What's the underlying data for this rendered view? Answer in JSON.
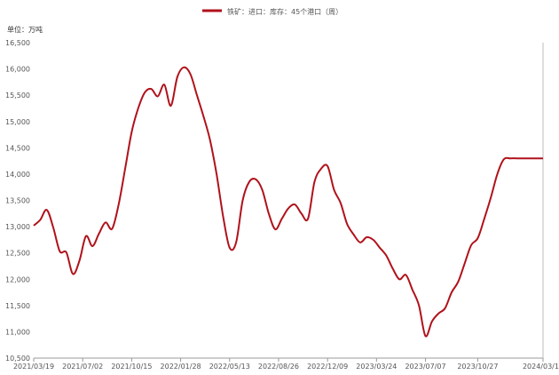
{
  "chart_data": {
    "type": "line",
    "legend": {
      "label": "铁矿：进口：库存：45个港口（周）",
      "color": "#b0121b",
      "placement": "top-center"
    },
    "unit_label": "单位：万吨",
    "ylim": [
      10500,
      16500
    ],
    "y_ticks": [
      "10,500",
      "11,000",
      "11,500",
      "12,000",
      "12,500",
      "13,000",
      "13,500",
      "14,000",
      "14,500",
      "15,000",
      "15,500",
      "16,000",
      "16,500"
    ],
    "y_tick_values": [
      10500,
      11000,
      11500,
      12000,
      12500,
      13000,
      13500,
      14000,
      14500,
      15000,
      15500,
      16000,
      16500
    ],
    "x_ticks": [
      "2021/03/19",
      "2021/07/02",
      "2021/10/15",
      "2022/01/28",
      "2022/05/13",
      "2022/08/26",
      "2022/12/09",
      "2023/03/24",
      "2023/07/07",
      "2023/10/27",
      "2024/03/15"
    ],
    "grid": false,
    "series": [
      {
        "name": "铁矿：进口：库存：45个港口（周）",
        "color": "#b0121b",
        "x": [
          "2021/03/19",
          "2021/04/02",
          "2021/04/16",
          "2021/04/30",
          "2021/05/14",
          "2021/05/28",
          "2021/06/11",
          "2021/06/25",
          "2021/07/09",
          "2021/07/23",
          "2021/08/06",
          "2021/08/20",
          "2021/09/03",
          "2021/09/17",
          "2021/10/01",
          "2021/10/15",
          "2021/10/29",
          "2021/11/12",
          "2021/11/26",
          "2021/12/10",
          "2021/12/24",
          "2022/01/07",
          "2022/01/21",
          "2022/02/04",
          "2022/02/18",
          "2022/03/04",
          "2022/03/18",
          "2022/04/01",
          "2022/04/15",
          "2022/04/29",
          "2022/05/13",
          "2022/05/27",
          "2022/06/10",
          "2022/06/24",
          "2022/07/08",
          "2022/07/22",
          "2022/08/05",
          "2022/08/19",
          "2022/09/02",
          "2022/09/16",
          "2022/09/30",
          "2022/10/14",
          "2022/10/28",
          "2022/11/11",
          "2022/11/25",
          "2022/12/09",
          "2022/12/23",
          "2023/01/06",
          "2023/01/20",
          "2023/02/03",
          "2023/02/17",
          "2023/03/03",
          "2023/03/17",
          "2023/03/31",
          "2023/04/14",
          "2023/04/28",
          "2023/05/12",
          "2023/05/26",
          "2023/06/09",
          "2023/06/23",
          "2023/07/07",
          "2023/07/21",
          "2023/08/04",
          "2023/08/18",
          "2023/09/01",
          "2023/09/15",
          "2023/09/29",
          "2023/10/13",
          "2023/10/27",
          "2023/11/10",
          "2023/11/24",
          "2023/12/08",
          "2023/12/22",
          "2024/01/05",
          "2024/01/19",
          "2024/02/02",
          "2024/02/16",
          "2024/03/01",
          "2024/03/15"
        ],
        "values": [
          13020,
          13130,
          13320,
          12980,
          12530,
          12510,
          12100,
          12350,
          12820,
          12630,
          12870,
          13080,
          12960,
          13420,
          14100,
          14800,
          15250,
          15550,
          15620,
          15480,
          15700,
          15300,
          15850,
          16030,
          15900,
          15500,
          15100,
          14650,
          14000,
          13200,
          12600,
          12700,
          13500,
          13850,
          13900,
          13700,
          13250,
          12950,
          13150,
          13350,
          13420,
          13250,
          13150,
          13850,
          14100,
          14150,
          13700,
          13450,
          13050,
          12850,
          12700,
          12800,
          12750,
          12600,
          12450,
          12200,
          12000,
          12080,
          11800,
          11500,
          10920,
          11200,
          11350,
          11450,
          11750,
          11950,
          12300,
          12650,
          12780,
          13150,
          13550,
          14000,
          14280,
          14300,
          14300,
          14300,
          14300,
          14300,
          14300
        ]
      }
    ]
  }
}
